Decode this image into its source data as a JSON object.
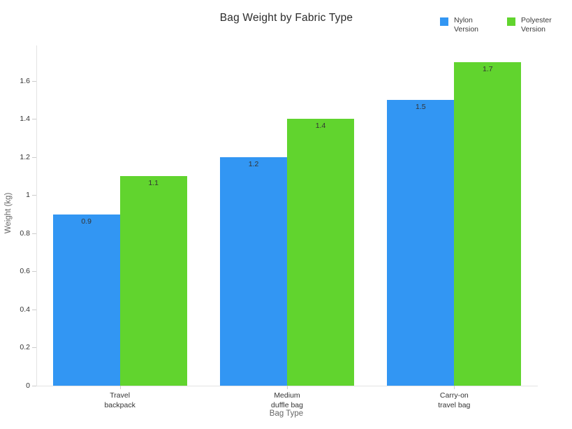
{
  "chart_data": {
    "type": "bar",
    "title": "Bag Weight by Fabric Type",
    "xlabel": "Bag Type",
    "ylabel": "Weight (kg)",
    "categories": [
      "Travel\nbackpack",
      "Medium\nduffle bag",
      "Carry-on\ntravel bag"
    ],
    "series": [
      {
        "name": "Nylon Version",
        "color": "#3296F3",
        "values": [
          0.9,
          1.2,
          1.5
        ]
      },
      {
        "name": "Polyester Version",
        "color": "#61D42E",
        "values": [
          1.1,
          1.4,
          1.7
        ]
      }
    ],
    "ylim": [
      0,
      1.787
    ],
    "yticks": [
      0,
      0.2,
      0.4,
      0.6,
      0.8,
      1,
      1.2,
      1.4,
      1.6
    ],
    "grid": false,
    "bar_labels": true,
    "legend_position": "top-right",
    "colors": {
      "axis_line": "#e3e3e3",
      "tick": "#cccccc",
      "tick_label": "#333333",
      "axis_title": "#666666",
      "title": "#2b2b2b"
    }
  },
  "legend": {
    "items": [
      {
        "label": "Nylon Version",
        "color": "#3296F3"
      },
      {
        "label": "Polyester Version",
        "color": "#61D42E"
      }
    ]
  }
}
